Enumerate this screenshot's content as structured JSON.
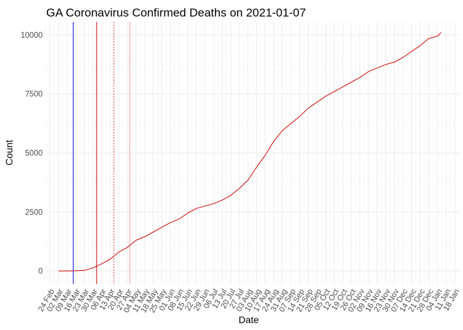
{
  "chart_data": {
    "type": "line",
    "title": "GA Coronavirus Confirmed Deaths on 2021-01-07",
    "xlabel": "Date",
    "ylabel": "Count",
    "xlim": [
      "2020-02-21",
      "2021-01-22"
    ],
    "ylim": [
      -550,
      10550
    ],
    "y_ticks": [
      0,
      2500,
      5000,
      7500,
      10000
    ],
    "x_ticks": [
      "2020-02-24",
      "2020-03-02",
      "2020-03-09",
      "2020-03-16",
      "2020-03-23",
      "2020-03-30",
      "2020-04-06",
      "2020-04-13",
      "2020-04-20",
      "2020-04-27",
      "2020-05-04",
      "2020-05-11",
      "2020-05-18",
      "2020-05-25",
      "2020-06-01",
      "2020-06-08",
      "2020-06-15",
      "2020-06-22",
      "2020-06-29",
      "2020-07-06",
      "2020-07-13",
      "2020-07-20",
      "2020-07-27",
      "2020-08-03",
      "2020-08-10",
      "2020-08-17",
      "2020-08-24",
      "2020-08-31",
      "2020-09-07",
      "2020-09-14",
      "2020-09-21",
      "2020-09-28",
      "2020-10-05",
      "2020-10-12",
      "2020-10-19",
      "2020-10-26",
      "2020-11-02",
      "2020-11-09",
      "2020-11-16",
      "2020-11-23",
      "2020-11-30",
      "2020-12-07",
      "2020-12-14",
      "2020-12-21",
      "2020-12-28",
      "2021-01-04",
      "2021-01-11",
      "2021-01-18"
    ],
    "x_tick_labels": [
      "24 Feb",
      "02 Mar",
      "09 Mar",
      "16 Mar",
      "23 Mar",
      "30 Mar",
      "06 Apr",
      "13 Apr",
      "20 Apr",
      "27 Apr",
      "04 May",
      "11 May",
      "18 May",
      "25 May",
      "01 Jun",
      "08 Jun",
      "15 Jun",
      "22 Jun",
      "29 Jun",
      "06 Jul",
      "13 Jul",
      "20 Jul",
      "27 Jul",
      "03 Aug",
      "10 Aug",
      "17 Aug",
      "24 Aug",
      "31 Aug",
      "07 Sep",
      "14 Sep",
      "21 Sep",
      "28 Sep",
      "05 Oct",
      "12 Oct",
      "19 Oct",
      "26 Oct",
      "02 Nov",
      "09 Nov",
      "16 Nov",
      "23 Nov",
      "30 Nov",
      "07 Dec",
      "14 Dec",
      "21 Dec",
      "28 Dec",
      "04 Jan",
      "11 Jan",
      "18 Jan"
    ],
    "grid": true,
    "series": [
      {
        "color": "#cc0000",
        "x": [
          "2020-03-02",
          "2020-03-09",
          "2020-03-16",
          "2020-03-23",
          "2020-03-30",
          "2020-04-06",
          "2020-04-13",
          "2020-04-20",
          "2020-04-27",
          "2020-05-04",
          "2020-05-11",
          "2020-05-18",
          "2020-05-25",
          "2020-06-01",
          "2020-06-08",
          "2020-06-15",
          "2020-06-22",
          "2020-06-29",
          "2020-07-06",
          "2020-07-13",
          "2020-07-20",
          "2020-07-27",
          "2020-08-03",
          "2020-08-10",
          "2020-08-17",
          "2020-08-24",
          "2020-08-31",
          "2020-09-07",
          "2020-09-14",
          "2020-09-21",
          "2020-09-28",
          "2020-10-05",
          "2020-10-12",
          "2020-10-19",
          "2020-10-26",
          "2020-11-02",
          "2020-11-09",
          "2020-11-16",
          "2020-11-23",
          "2020-11-30",
          "2020-12-07",
          "2020-12-14",
          "2020-12-21",
          "2020-12-28",
          "2021-01-04",
          "2021-01-07"
        ],
        "values": [
          0,
          0,
          5,
          25,
          125,
          300,
          500,
          800,
          1000,
          1300,
          1450,
          1650,
          1850,
          2050,
          2200,
          2450,
          2650,
          2750,
          2850,
          3000,
          3200,
          3500,
          3850,
          4400,
          4900,
          5500,
          5950,
          6250,
          6550,
          6900,
          7150,
          7400,
          7600,
          7800,
          8000,
          8200,
          8450,
          8600,
          8750,
          8850,
          9050,
          9300,
          9550,
          9850,
          9950,
          10100
        ]
      }
    ],
    "reference_lines": [
      {
        "x": "2020-03-14",
        "color": "#0000cc",
        "style": "solid"
      },
      {
        "x": "2020-04-02",
        "color": "#cc0000",
        "style": "solid"
      },
      {
        "x": "2020-04-16",
        "color": "#cc0000",
        "style": "dotted"
      },
      {
        "x": "2020-04-29",
        "color": "#ff9999",
        "style": "solid"
      }
    ]
  }
}
